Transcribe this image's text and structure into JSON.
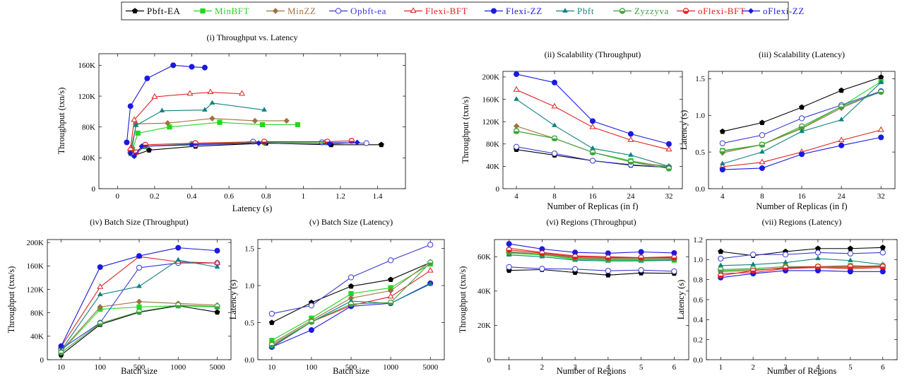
{
  "legend": [
    {
      "label": "Pbft-EA",
      "color": "#000000",
      "marker": "pentagon"
    },
    {
      "label": "MinBFT",
      "color": "#22d622",
      "marker": "square"
    },
    {
      "label": "MinZZ",
      "color": "#a07040",
      "marker": "diamond"
    },
    {
      "label": "Opbft-ea",
      "color": "#3a3ad0",
      "marker": "circle-open"
    },
    {
      "label": "Flexi-BFT",
      "color": "#e02020",
      "marker": "tri-open"
    },
    {
      "label": "Flexi-ZZ",
      "color": "#1a1ae0",
      "marker": "circle"
    },
    {
      "label": "Pbft",
      "color": "#108080",
      "marker": "triangle"
    },
    {
      "label": "Zyzzyva",
      "color": "#40a040",
      "marker": "circle-half"
    },
    {
      "label": "oFlexi-BFT",
      "color": "#e02020",
      "marker": "circle-half-red"
    },
    {
      "label": "oFlexi-ZZ",
      "color": "#1a1ae0",
      "marker": "diamond-solid"
    }
  ],
  "chart_data": [
    {
      "id": "p1",
      "type": "line",
      "title": "(i) Throughput vs. Latency",
      "xlabel": "Latency (s)",
      "ylabel": "Throughput (txn/s)",
      "xlim": [
        -0.1,
        1.55
      ],
      "ylim": [
        0,
        175000
      ],
      "xticks": [
        0,
        0.2,
        0.4,
        0.6,
        0.8,
        1,
        1.2,
        1.4
      ],
      "xticklabels": [
        "0",
        "0.2",
        "0.4",
        "0.6",
        "0.8",
        "1",
        "1.2",
        "1.4"
      ],
      "yticks": [
        0,
        40000,
        80000,
        120000,
        160000
      ],
      "yticklabels": [
        "0",
        "40K",
        "80K",
        "120K",
        "160K"
      ],
      "series": [
        {
          "name": "Pbft-EA",
          "x": [
            0.07,
            0.09,
            0.17,
            0.42,
            0.8,
            1.15,
            1.42
          ],
          "y": [
            46000,
            43000,
            50000,
            55000,
            59000,
            57000,
            57000
          ]
        },
        {
          "name": "MinBFT",
          "x": [
            0.08,
            0.11,
            0.28,
            0.55,
            0.78,
            0.97
          ],
          "y": [
            50000,
            72000,
            80000,
            86000,
            83000,
            83000
          ]
        },
        {
          "name": "MinZZ",
          "x": [
            0.08,
            0.1,
            0.27,
            0.51,
            0.74,
            0.91
          ],
          "y": [
            53000,
            84000,
            85000,
            91000,
            88000,
            88000
          ]
        },
        {
          "name": "Opbft-ea",
          "x": [
            0.08,
            0.14,
            0.42,
            0.73,
            1.1,
            1.34
          ],
          "y": [
            45000,
            55000,
            57000,
            61000,
            60000,
            59000
          ]
        },
        {
          "name": "Flexi-BFT",
          "x": [
            0.07,
            0.09,
            0.2,
            0.39,
            0.5,
            0.67
          ],
          "y": [
            52000,
            89000,
            119000,
            123000,
            125000,
            123000
          ]
        },
        {
          "name": "Flexi-ZZ",
          "x": [
            0.05,
            0.07,
            0.16,
            0.3,
            0.4,
            0.47
          ],
          "y": [
            60000,
            107000,
            143000,
            160000,
            158000,
            157000
          ]
        },
        {
          "name": "Pbft",
          "x": [
            0.07,
            0.1,
            0.24,
            0.47,
            0.51,
            0.79
          ],
          "y": [
            48000,
            82000,
            101000,
            102000,
            111000,
            102000
          ]
        },
        {
          "name": "Zyzzyva",
          "x": [
            0.07,
            0.09,
            0.15,
            0.4,
            0.79,
            1.12
          ],
          "y": [
            47000,
            44000,
            55000,
            58000,
            60000,
            60000
          ]
        },
        {
          "name": "oFlexi-BFT",
          "x": [
            0.07,
            0.1,
            0.15,
            0.42,
            0.79,
            1.13,
            1.26
          ],
          "y": [
            50000,
            47000,
            57000,
            59000,
            61000,
            61000,
            62000
          ]
        },
        {
          "name": "oFlexi-ZZ",
          "x": [
            0.07,
            0.09,
            0.13,
            0.4,
            0.76,
            1.14,
            1.29
          ],
          "y": [
            46000,
            42000,
            55000,
            57000,
            59000,
            58000,
            60000
          ]
        }
      ]
    },
    {
      "id": "p2",
      "type": "line",
      "title": "(ii) Scalability (Throughput)",
      "xlabel": "Number of Replicas (in f)",
      "ylabel": "Throughput (txn/s)",
      "categories": [
        "4",
        "8",
        "16",
        "24",
        "32"
      ],
      "ylim": [
        0,
        210000
      ],
      "yticks": [
        0,
        40000,
        80000,
        120000,
        160000,
        200000
      ],
      "yticklabels": [
        "0",
        "40K",
        "80K",
        "120K",
        "160K",
        "200K"
      ],
      "series": [
        {
          "name": "Pbft-EA",
          "values": [
            70000,
            60000,
            50000,
            42000,
            38000
          ]
        },
        {
          "name": "MinBFT",
          "values": [
            103000,
            90000,
            65000,
            50000,
            38000
          ]
        },
        {
          "name": "MinZZ",
          "values": [
            112000,
            90000,
            65000,
            48000,
            40000
          ]
        },
        {
          "name": "Opbft-ea",
          "values": [
            75000,
            63000,
            50000,
            43000,
            38000
          ]
        },
        {
          "name": "Flexi-BFT",
          "values": [
            177000,
            147000,
            110000,
            87000,
            70000
          ]
        },
        {
          "name": "Flexi-ZZ",
          "values": [
            205000,
            190000,
            121000,
            98000,
            80000
          ]
        },
        {
          "name": "Pbft",
          "values": [
            160000,
            113000,
            72000,
            60000,
            40000
          ]
        },
        {
          "name": "Zyzzyva",
          "values": [
            103000,
            90000,
            65000,
            48000,
            36000
          ]
        }
      ]
    },
    {
      "id": "p3",
      "type": "line",
      "title": "(iii) Scalability (Latency)",
      "xlabel": "Number of Replicas (in f)",
      "ylabel": "Latency (s)",
      "categories": [
        "4",
        "8",
        "16",
        "24",
        "32"
      ],
      "ylim": [
        0,
        1.6
      ],
      "yticks": [
        0,
        0.5,
        1,
        1.5
      ],
      "yticklabels": [
        "0.0",
        "0.5",
        "1.0",
        "1.5"
      ],
      "series": [
        {
          "name": "Pbft-EA",
          "values": [
            0.78,
            0.9,
            1.11,
            1.34,
            1.52
          ]
        },
        {
          "name": "MinBFT",
          "values": [
            0.52,
            0.6,
            0.83,
            1.12,
            1.46
          ]
        },
        {
          "name": "MinZZ",
          "values": [
            0.49,
            0.6,
            0.82,
            1.1,
            1.33
          ]
        },
        {
          "name": "Opbft-ea",
          "values": [
            0.62,
            0.73,
            0.96,
            1.14,
            1.33
          ]
        },
        {
          "name": "Flexi-BFT",
          "values": [
            0.3,
            0.36,
            0.5,
            0.66,
            0.8
          ]
        },
        {
          "name": "Flexi-ZZ",
          "values": [
            0.26,
            0.28,
            0.47,
            0.59,
            0.7
          ]
        },
        {
          "name": "Pbft",
          "values": [
            0.34,
            0.5,
            0.78,
            0.94,
            1.45
          ]
        },
        {
          "name": "Zyzzyva",
          "values": [
            0.51,
            0.6,
            0.85,
            1.12,
            1.32
          ]
        }
      ]
    },
    {
      "id": "p4",
      "type": "line",
      "title": "(iv) Batch Size (Throughput)",
      "xlabel": "Batch size",
      "ylabel": "Throughput (txn/s)",
      "categories": [
        "10",
        "100",
        "500",
        "1000",
        "5000"
      ],
      "ylim": [
        0,
        205000
      ],
      "yticks": [
        0,
        40000,
        80000,
        120000,
        160000,
        200000
      ],
      "yticklabels": [
        "0",
        "40K",
        "80K",
        "120K",
        "160K",
        "200K"
      ],
      "series": [
        {
          "name": "Pbft-EA",
          "values": [
            8000,
            60000,
            81000,
            92000,
            81000
          ]
        },
        {
          "name": "MinBFT",
          "values": [
            14000,
            86000,
            90000,
            92000,
            90000
          ]
        },
        {
          "name": "MinZZ",
          "values": [
            15000,
            90000,
            99000,
            96000,
            93000
          ]
        },
        {
          "name": "Opbft-ea",
          "values": [
            18000,
            63000,
            157000,
            165000,
            165000
          ]
        },
        {
          "name": "Flexi-BFT",
          "values": [
            22000,
            124000,
            176000,
            167000,
            165000
          ]
        },
        {
          "name": "Flexi-ZZ",
          "values": [
            23000,
            158000,
            177000,
            191000,
            186000
          ]
        },
        {
          "name": "Pbft",
          "values": [
            16000,
            111000,
            125000,
            170000,
            158000
          ]
        },
        {
          "name": "Zyzzyva",
          "values": [
            12000,
            62000,
            82000,
            93000,
            91000
          ]
        }
      ]
    },
    {
      "id": "p5",
      "type": "line",
      "title": "(v) Batch Size (Latency)",
      "xlabel": "Batch size",
      "ylabel": "Latency (s)",
      "categories": [
        "10",
        "100",
        "500",
        "1000",
        "5000"
      ],
      "ylim": [
        0,
        1.62
      ],
      "yticks": [
        0,
        0.5,
        1,
        1.5
      ],
      "yticklabels": [
        "0.0",
        "0.5",
        "1.0",
        "1.5"
      ],
      "series": [
        {
          "name": "Pbft-EA",
          "values": [
            0.5,
            0.77,
            0.99,
            1.08,
            1.31
          ]
        },
        {
          "name": "MinBFT",
          "values": [
            0.26,
            0.56,
            0.89,
            0.97,
            1.29
          ]
        },
        {
          "name": "MinZZ",
          "values": [
            0.22,
            0.53,
            0.83,
            0.93,
            1.32
          ]
        },
        {
          "name": "Opbft-ea",
          "values": [
            0.62,
            0.73,
            1.11,
            1.34,
            1.55
          ]
        },
        {
          "name": "Flexi-BFT",
          "values": [
            0.18,
            0.51,
            0.73,
            0.85,
            1.2
          ]
        },
        {
          "name": "Flexi-ZZ",
          "values": [
            0.17,
            0.4,
            0.72,
            0.76,
            1.03
          ]
        },
        {
          "name": "Pbft",
          "values": [
            0.17,
            0.51,
            0.79,
            0.76,
            1.02
          ]
        },
        {
          "name": "Zyzzyva",
          "values": [
            0.2,
            0.51,
            0.75,
            0.77,
            1.31
          ]
        }
      ]
    },
    {
      "id": "p6",
      "type": "line",
      "title": "(vi) Regions (Throughput)",
      "xlabel": "Number of Regions",
      "ylabel": "Throughput (txn/s)",
      "categories": [
        "1",
        "2",
        "3",
        "4",
        "5",
        "6"
      ],
      "ylim": [
        0,
        70000
      ],
      "yticks": [
        0,
        20000,
        40000,
        60000
      ],
      "yticklabels": [
        "0",
        "20K",
        "40K",
        "60K"
      ],
      "series": [
        {
          "name": "Pbft-EA",
          "values": [
            52000,
            52500,
            50800,
            49300,
            50500,
            50300
          ]
        },
        {
          "name": "MinBFT",
          "values": [
            62000,
            61000,
            58500,
            58000,
            58000,
            58000
          ]
        },
        {
          "name": "MinZZ",
          "values": [
            63000,
            61500,
            59500,
            59000,
            59000,
            59000
          ]
        },
        {
          "name": "Opbft-ea",
          "values": [
            54000,
            53000,
            52800,
            51800,
            52200,
            51500
          ]
        },
        {
          "name": "Flexi-BFT",
          "values": [
            65000,
            62500,
            60500,
            60000,
            59500,
            60000
          ]
        },
        {
          "name": "Flexi-ZZ",
          "values": [
            67500,
            64500,
            62500,
            62000,
            62800,
            62200
          ]
        },
        {
          "name": "Pbft",
          "values": [
            61000,
            60000,
            58000,
            57500,
            57500,
            58000
          ]
        },
        {
          "name": "Zyzzyva",
          "values": [
            62500,
            61500,
            59000,
            58500,
            58500,
            58500
          ]
        },
        {
          "name": "oFlexi-BFT",
          "values": [
            64000,
            62000,
            60000,
            59500,
            59500,
            59500
          ]
        }
      ]
    },
    {
      "id": "p7",
      "type": "line",
      "title": "(vii) Regions (Latency)",
      "xlabel": "Number of Regions",
      "ylabel": "Latency (s)",
      "categories": [
        "1",
        "2",
        "3",
        "4",
        "5",
        "6"
      ],
      "ylim": [
        0,
        1.2
      ],
      "yticks": [
        0,
        0.2,
        0.4,
        0.6,
        0.8,
        1,
        1.2
      ],
      "yticklabels": [
        "0.0",
        "0.2",
        "0.4",
        "0.6",
        "0.8",
        "1.0",
        "1.2"
      ],
      "series": [
        {
          "name": "Pbft-EA",
          "values": [
            1.08,
            1.04,
            1.08,
            1.11,
            1.11,
            1.12
          ]
        },
        {
          "name": "MinBFT",
          "values": [
            0.89,
            0.9,
            0.91,
            0.93,
            0.94,
            0.93
          ]
        },
        {
          "name": "MinZZ",
          "values": [
            0.88,
            0.89,
            0.92,
            0.92,
            0.92,
            0.93
          ]
        },
        {
          "name": "Opbft-ea",
          "values": [
            1.01,
            1.05,
            1.05,
            1.07,
            1.06,
            1.07
          ]
        },
        {
          "name": "Flexi-BFT",
          "values": [
            0.86,
            0.87,
            0.91,
            0.92,
            0.91,
            0.92
          ]
        },
        {
          "name": "Flexi-ZZ",
          "values": [
            0.82,
            0.86,
            0.89,
            0.89,
            0.88,
            0.88
          ]
        },
        {
          "name": "Pbft",
          "values": [
            0.94,
            0.95,
            0.97,
            1.01,
            0.99,
            0.95
          ]
        },
        {
          "name": "Zyzzyva",
          "values": [
            0.9,
            0.91,
            0.93,
            0.93,
            0.93,
            0.94
          ]
        },
        {
          "name": "oFlexi-BFT",
          "values": [
            0.84,
            0.89,
            0.92,
            0.93,
            0.93,
            0.93
          ]
        }
      ]
    }
  ]
}
